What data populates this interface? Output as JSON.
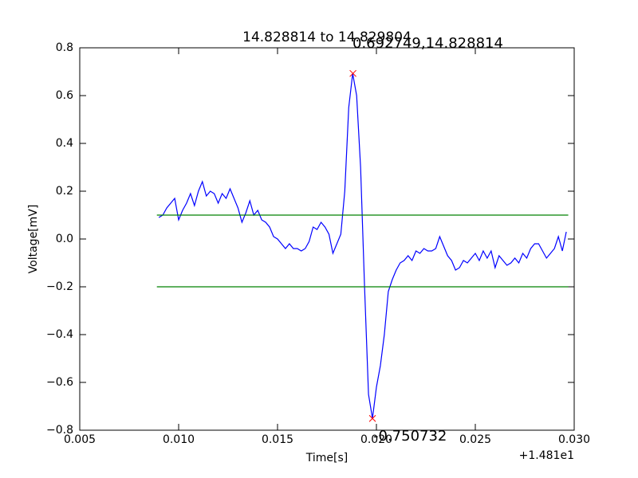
{
  "chart_data": {
    "type": "line",
    "title": "14.828814 to 14.829804",
    "xlabel": "Time[s]",
    "ylabel": "Voltage[mV]",
    "x_offset_label": "+1.481e1",
    "annotations": [
      "0.692749,14.828814",
      "-0.750732"
    ],
    "xlim": [
      0.005,
      0.03
    ],
    "ylim": [
      -0.8,
      0.8
    ],
    "xticks": [
      {
        "value": 0.005,
        "label": "0.005"
      },
      {
        "value": 0.01,
        "label": "0.010"
      },
      {
        "value": 0.015,
        "label": "0.015"
      },
      {
        "value": 0.02,
        "label": "0.020"
      },
      {
        "value": 0.025,
        "label": "0.025"
      },
      {
        "value": 0.03,
        "label": "0.030"
      }
    ],
    "yticks": [
      {
        "value": -0.8,
        "label": "−0.8"
      },
      {
        "value": -0.6,
        "label": "−0.6"
      },
      {
        "value": -0.4,
        "label": "−0.4"
      },
      {
        "value": -0.2,
        "label": "−0.2"
      },
      {
        "value": 0,
        "label": "0.0"
      },
      0.2,
      0.4,
      0.6,
      0.8
    ],
    "series": [
      {
        "color": "#0000ff",
        "marker": "none",
        "x": [
          0.009,
          0.0092,
          0.0094,
          0.0096,
          0.0098,
          0.01,
          0.0102,
          0.0104,
          0.0106,
          0.0108,
          0.011,
          0.0112,
          0.0114,
          0.0116,
          0.0118,
          0.012,
          0.0122,
          0.0124,
          0.0126,
          0.0128,
          0.013,
          0.0132,
          0.0134,
          0.0136,
          0.0138,
          0.014,
          0.0142,
          0.0144,
          0.0146,
          0.0148,
          0.015,
          0.0152,
          0.0154,
          0.0156,
          0.0158,
          0.016,
          0.0162,
          0.0164,
          0.0166,
          0.0168,
          0.017,
          0.0172,
          0.0174,
          0.0176,
          0.0178,
          0.018,
          0.0182,
          0.0184,
          0.0186,
          0.0188,
          0.019,
          0.0192,
          0.0194,
          0.0196,
          0.0198,
          0.02,
          0.0202,
          0.0204,
          0.0206,
          0.0208,
          0.021,
          0.0212,
          0.0214,
          0.0216,
          0.0218,
          0.022,
          0.0222,
          0.0224,
          0.0226,
          0.0228,
          0.023,
          0.0232,
          0.0234,
          0.0236,
          0.0238,
          0.024,
          0.0242,
          0.0244,
          0.0246,
          0.0248,
          0.025,
          0.0252,
          0.0254,
          0.0256,
          0.0258,
          0.026,
          0.0262,
          0.0264,
          0.0266,
          0.0268,
          0.027,
          0.0272,
          0.0274,
          0.0276,
          0.0278,
          0.028,
          0.0282,
          0.0284,
          0.0286,
          0.0288,
          0.029,
          0.0292,
          0.0294,
          0.0296
        ],
        "values": [
          0.09,
          0.1,
          0.13,
          0.15,
          0.17,
          0.08,
          0.12,
          0.15,
          0.19,
          0.14,
          0.2,
          0.24,
          0.18,
          0.2,
          0.19,
          0.15,
          0.19,
          0.17,
          0.21,
          0.17,
          0.13,
          0.07,
          0.11,
          0.16,
          0.1,
          0.12,
          0.08,
          0.07,
          0.05,
          0.01,
          0.0,
          -0.02,
          -0.04,
          -0.02,
          -0.04,
          -0.04,
          -0.05,
          -0.04,
          -0.01,
          0.05,
          0.04,
          0.07,
          0.05,
          0.02,
          -0.06,
          -0.02,
          0.02,
          0.2,
          0.55,
          0.692749,
          0.6,
          0.3,
          -0.2,
          -0.65,
          -0.750732,
          -0.62,
          -0.53,
          -0.4,
          -0.22,
          -0.17,
          -0.13,
          -0.1,
          -0.09,
          -0.07,
          -0.09,
          -0.05,
          -0.06,
          -0.04,
          -0.05,
          -0.05,
          -0.04,
          0.01,
          -0.03,
          -0.07,
          -0.09,
          -0.13,
          -0.12,
          -0.09,
          -0.1,
          -0.08,
          -0.06,
          -0.09,
          -0.05,
          -0.08,
          -0.05,
          -0.12,
          -0.07,
          -0.09,
          -0.11,
          -0.1,
          -0.08,
          -0.1,
          -0.06,
          -0.08,
          -0.04,
          -0.02,
          -0.02,
          -0.05,
          -0.08,
          -0.06,
          -0.04,
          0.01,
          -0.05,
          0.03
        ]
      },
      {
        "color": "#008000",
        "marker": "none",
        "x": [
          0.0089,
          0.0297
        ],
        "values": [
          0.1,
          0.1
        ]
      },
      {
        "color": "#008000",
        "marker": "none",
        "x": [
          0.0089,
          0.0297
        ],
        "values": [
          -0.2,
          -0.2
        ]
      },
      {
        "color": "#ff0000",
        "marker": "x",
        "x": [
          0.018814,
          0.0198
        ],
        "values": [
          0.692749,
          -0.750732
        ]
      }
    ]
  }
}
